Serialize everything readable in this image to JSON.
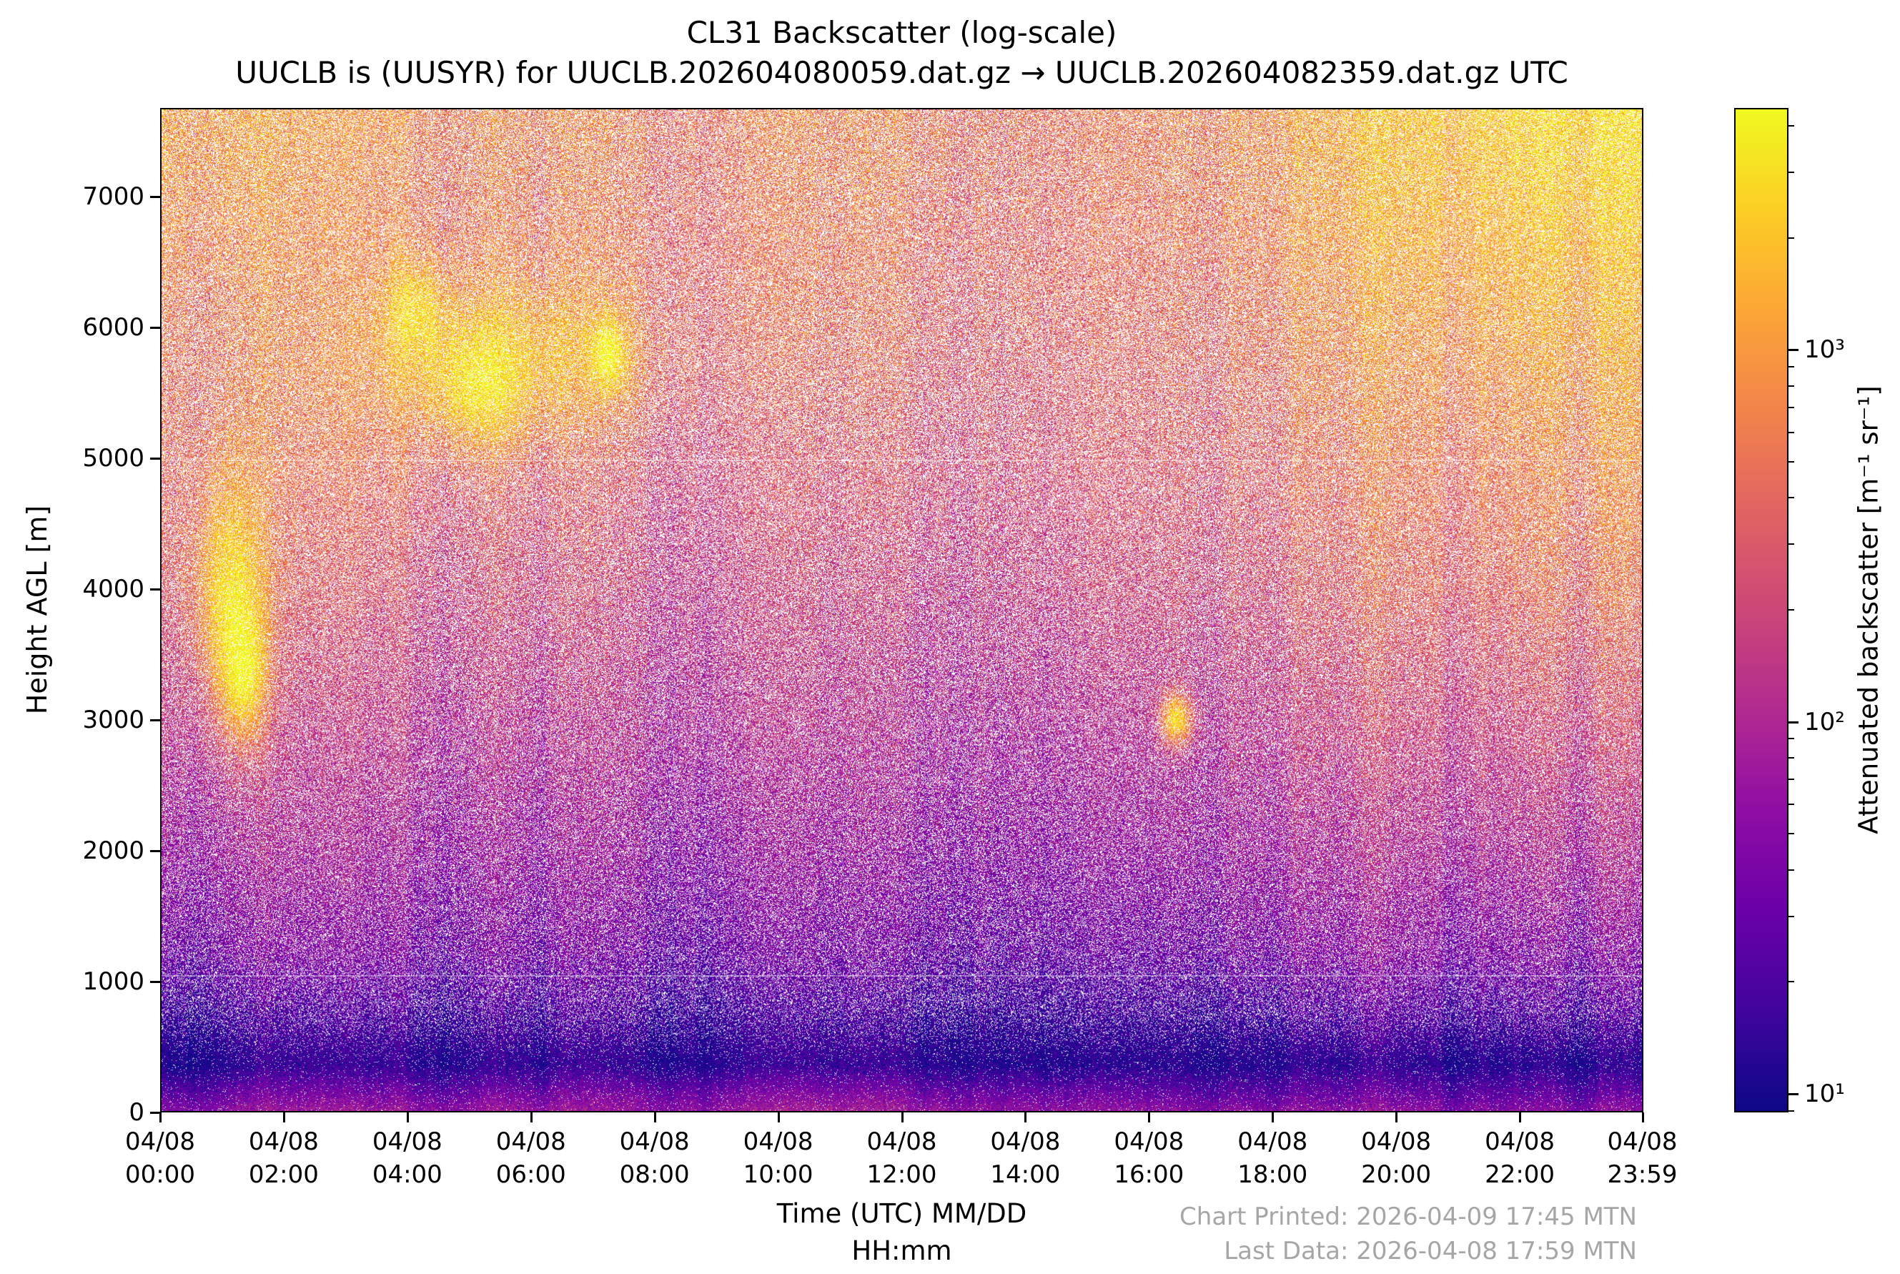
{
  "title": "CL31 Backscatter (log-scale)",
  "subtitle": "UUCLB is (UUSYR) for UUCLB.202604080059.dat.gz → UUCLB.202604082359.dat.gz UTC",
  "footer": {
    "printed": "Chart Printed: 2026-04-09 17:45 MTN",
    "last_data": "Last Data: 2026-04-08 17:59 MTN"
  },
  "chart_data": {
    "type": "heatmap",
    "title": "CL31 Backscatter (log-scale)",
    "subtitle": "UUCLB is (UUSYR) for UUCLB.202604080059.dat.gz → UUCLB.202604082359.dat.gz UTC",
    "xlabel": "Time (UTC) MM/DD",
    "xlabel_line2": "HH:mm",
    "ylabel": "Height AGL [m]",
    "colorbar_label": "Attenuated backscatter [m⁻¹ sr⁻¹]",
    "colormap": "plasma",
    "colormap_stops": [
      "#0d0887",
      "#41049d",
      "#6a00a8",
      "#8f0da4",
      "#b12a90",
      "#cc4778",
      "#e16462",
      "#f2844b",
      "#fca636",
      "#fcce25",
      "#f0f921"
    ],
    "x_range_hours": [
      0,
      24
    ],
    "y_max_m": 7678,
    "y_ticks_m": [
      0,
      1000,
      2000,
      3000,
      4000,
      5000,
      6000,
      7000
    ],
    "x_ticks": [
      {
        "date": "04/08",
        "time": "00:00",
        "hour": 0
      },
      {
        "date": "04/08",
        "time": "02:00",
        "hour": 2
      },
      {
        "date": "04/08",
        "time": "04:00",
        "hour": 4
      },
      {
        "date": "04/08",
        "time": "06:00",
        "hour": 6
      },
      {
        "date": "04/08",
        "time": "08:00",
        "hour": 8
      },
      {
        "date": "04/08",
        "time": "10:00",
        "hour": 10
      },
      {
        "date": "04/08",
        "time": "12:00",
        "hour": 12
      },
      {
        "date": "04/08",
        "time": "14:00",
        "hour": 14
      },
      {
        "date": "04/08",
        "time": "16:00",
        "hour": 16
      },
      {
        "date": "04/08",
        "time": "18:00",
        "hour": 18
      },
      {
        "date": "04/08",
        "time": "20:00",
        "hour": 20
      },
      {
        "date": "04/08",
        "time": "22:00",
        "hour": 22
      },
      {
        "date": "04/08",
        "time": "23:59",
        "hour": 23.983
      }
    ],
    "colorbar_scale": "log",
    "colorbar_range_log10": [
      0.95,
      3.65
    ],
    "colorbar_major_ticks": [
      {
        "label": "10¹",
        "exp": 1
      },
      {
        "label": "10²",
        "exp": 2
      },
      {
        "label": "10³",
        "exp": 3
      }
    ],
    "time_bins_hours": [
      0,
      2,
      4,
      6,
      8,
      10,
      12,
      14,
      16,
      18,
      20,
      22,
      24
    ],
    "height_bins_m": [
      0,
      120,
      350,
      700,
      1200,
      2000,
      3000,
      4000,
      5000,
      6000,
      7000,
      7678
    ],
    "base_field_log10": [
      [
        1.7,
        1.7,
        1.7,
        1.7,
        1.7,
        1.75,
        1.75,
        1.75,
        1.75,
        1.7,
        1.7,
        1.7,
        1.7
      ],
      [
        1.45,
        1.45,
        1.45,
        1.45,
        1.5,
        1.5,
        1.5,
        1.5,
        1.5,
        1.45,
        1.45,
        1.45,
        1.45
      ],
      [
        1.0,
        1.0,
        1.0,
        1.0,
        1.0,
        1.0,
        1.0,
        1.0,
        1.05,
        1.05,
        1.05,
        1.05,
        1.05
      ],
      [
        1.2,
        1.15,
        1.15,
        1.15,
        1.15,
        1.1,
        1.1,
        1.15,
        1.2,
        1.25,
        1.3,
        1.3,
        1.3
      ],
      [
        1.55,
        1.5,
        1.5,
        1.45,
        1.45,
        1.4,
        1.4,
        1.45,
        1.5,
        1.6,
        1.65,
        1.65,
        1.65
      ],
      [
        1.85,
        1.8,
        1.75,
        1.7,
        1.7,
        1.65,
        1.65,
        1.7,
        1.8,
        1.9,
        1.95,
        2.0,
        2.0
      ],
      [
        2.15,
        2.05,
        2.0,
        1.95,
        1.95,
        1.9,
        1.9,
        1.95,
        2.05,
        2.15,
        2.25,
        2.3,
        2.35
      ],
      [
        2.45,
        2.35,
        2.25,
        2.2,
        2.15,
        2.1,
        2.1,
        2.2,
        2.3,
        2.4,
        2.5,
        2.6,
        2.65
      ],
      [
        2.6,
        2.5,
        2.45,
        2.35,
        2.3,
        2.25,
        2.3,
        2.35,
        2.45,
        2.55,
        2.65,
        2.75,
        2.85
      ],
      [
        2.7,
        2.6,
        2.55,
        2.5,
        2.45,
        2.45,
        2.45,
        2.5,
        2.55,
        2.7,
        2.85,
        3.0,
        3.05
      ],
      [
        2.9,
        2.7,
        2.6,
        2.55,
        2.55,
        2.5,
        2.55,
        2.55,
        2.65,
        2.8,
        3.05,
        3.25,
        3.35
      ],
      [
        3.0,
        2.8,
        2.7,
        2.65,
        2.6,
        2.6,
        2.6,
        2.6,
        2.7,
        2.9,
        3.15,
        3.4,
        3.5
      ]
    ],
    "features": [
      {
        "name": "bright-streaks-early",
        "t_hours": 1.1,
        "height_m": 3900,
        "sigma_t_hours": 0.4,
        "sigma_h_m": 650,
        "amplitude_log10": 1.1
      },
      {
        "name": "bright-streaks-early-2",
        "t_hours": 1.35,
        "height_m": 3300,
        "sigma_t_hours": 0.25,
        "sigma_h_m": 350,
        "amplitude_log10": 0.9
      },
      {
        "name": "cloud-band",
        "t_hours": 5.6,
        "height_m": 5750,
        "sigma_t_hours": 1.5,
        "sigma_h_m": 420,
        "amplitude_log10": 0.65
      },
      {
        "name": "cloud-core-a",
        "t_hours": 4.1,
        "height_m": 6150,
        "sigma_t_hours": 0.35,
        "sigma_h_m": 280,
        "amplitude_log10": 0.6
      },
      {
        "name": "cloud-core-b",
        "t_hours": 5.1,
        "height_m": 5500,
        "sigma_t_hours": 0.5,
        "sigma_h_m": 300,
        "amplitude_log10": 0.55
      },
      {
        "name": "cloud-core-c",
        "t_hours": 7.25,
        "height_m": 5800,
        "sigma_t_hours": 0.2,
        "sigma_h_m": 200,
        "amplitude_log10": 0.95
      },
      {
        "name": "bright-spot-afternoon",
        "t_hours": 16.45,
        "height_m": 3000,
        "sigma_t_hours": 0.18,
        "sigma_h_m": 140,
        "amplitude_log10": 1.4
      }
    ],
    "artifact_lines_m": [
      1060,
      5000
    ]
  }
}
